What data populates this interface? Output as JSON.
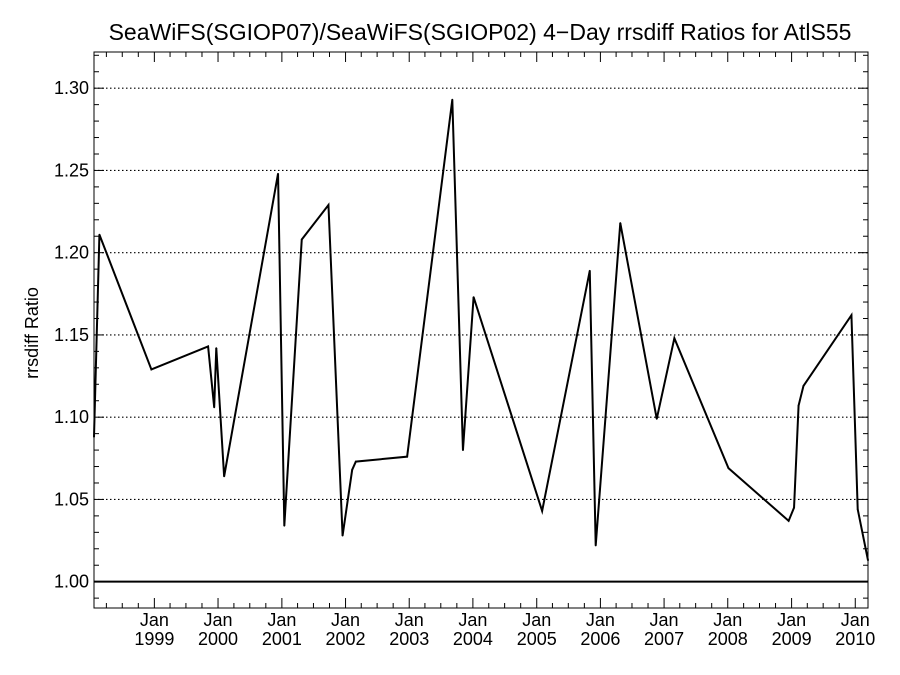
{
  "chart_data": {
    "type": "line",
    "title": "SeaWiFS(SGIOP07)/SeaWiFS(SGIOP02) 4−Day rrsdiff Ratios for AtlS55",
    "xlabel": "",
    "ylabel": "rrsdiff Ratio",
    "xlim": [
      "1998-01-20",
      "2010-03-15"
    ],
    "ylim": [
      0.984,
      1.322
    ],
    "yticks": [
      1.0,
      1.05,
      1.1,
      1.15,
      1.2,
      1.25,
      1.3
    ],
    "ytick_labels": [
      "1.00",
      "1.05",
      "1.10",
      "1.15",
      "1.20",
      "1.25",
      "1.30"
    ],
    "xticks": [
      {
        "date": "1999-01-01",
        "month": "Jan",
        "year": "1999"
      },
      {
        "date": "2000-01-01",
        "month": "Jan",
        "year": "2000"
      },
      {
        "date": "2001-01-01",
        "month": "Jan",
        "year": "2001"
      },
      {
        "date": "2002-01-01",
        "month": "Jan",
        "year": "2002"
      },
      {
        "date": "2003-01-01",
        "month": "Jan",
        "year": "2003"
      },
      {
        "date": "2004-01-01",
        "month": "Jan",
        "year": "2004"
      },
      {
        "date": "2005-01-01",
        "month": "Jan",
        "year": "2005"
      },
      {
        "date": "2006-01-01",
        "month": "Jan",
        "year": "2006"
      },
      {
        "date": "2007-01-01",
        "month": "Jan",
        "year": "2007"
      },
      {
        "date": "2008-01-01",
        "month": "Jan",
        "year": "2008"
      },
      {
        "date": "2009-01-01",
        "month": "Jan",
        "year": "2009"
      },
      {
        "date": "2010-01-01",
        "month": "Jan",
        "year": "2010"
      }
    ],
    "grid": "horizontal dotted",
    "reference_line": 1.0,
    "series": [
      {
        "color": "#000000",
        "points": [
          {
            "x": "1998-01-20",
            "y": 1.088
          },
          {
            "x": "1998-02-20",
            "y": 1.211
          },
          {
            "x": "1998-12-15",
            "y": 1.129
          },
          {
            "x": "1999-11-05",
            "y": 1.143
          },
          {
            "x": "1999-12-10",
            "y": 1.106
          },
          {
            "x": "1999-12-22",
            "y": 1.142
          },
          {
            "x": "2000-02-05",
            "y": 1.064
          },
          {
            "x": "2000-12-10",
            "y": 1.248
          },
          {
            "x": "2001-01-15",
            "y": 1.034
          },
          {
            "x": "2001-04-25",
            "y": 1.208
          },
          {
            "x": "2001-09-25",
            "y": 1.229
          },
          {
            "x": "2001-12-15",
            "y": 1.028
          },
          {
            "x": "2002-02-08",
            "y": 1.068
          },
          {
            "x": "2002-03-01",
            "y": 1.073
          },
          {
            "x": "2002-12-20",
            "y": 1.076
          },
          {
            "x": "2003-09-05",
            "y": 1.293
          },
          {
            "x": "2003-11-05",
            "y": 1.08
          },
          {
            "x": "2004-01-05",
            "y": 1.173
          },
          {
            "x": "2005-02-01",
            "y": 1.043
          },
          {
            "x": "2005-11-01",
            "y": 1.189
          },
          {
            "x": "2005-12-05",
            "y": 1.022
          },
          {
            "x": "2006-04-25",
            "y": 1.218
          },
          {
            "x": "2006-11-20",
            "y": 1.099
          },
          {
            "x": "2007-03-01",
            "y": 1.148
          },
          {
            "x": "2008-01-05",
            "y": 1.069
          },
          {
            "x": "2008-12-15",
            "y": 1.037
          },
          {
            "x": "2009-01-15",
            "y": 1.045
          },
          {
            "x": "2009-02-10",
            "y": 1.107
          },
          {
            "x": "2009-03-10",
            "y": 1.119
          },
          {
            "x": "2009-12-10",
            "y": 1.162
          },
          {
            "x": "2010-01-15",
            "y": 1.044
          },
          {
            "x": "2010-03-15",
            "y": 1.013
          }
        ]
      }
    ]
  }
}
